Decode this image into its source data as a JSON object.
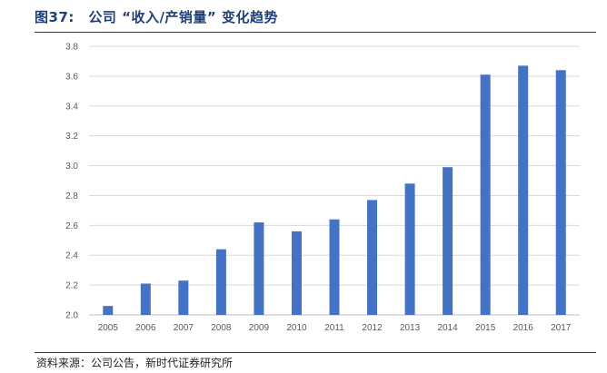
{
  "figure": {
    "title": "图37:　公司 “收入/产销量” 变化趋势",
    "source": "资料来源：公司公告，新时代证券研究所"
  },
  "colors": {
    "bar": "#4472c4",
    "grid": "#d9d9d9",
    "axis": "#bfbfbf",
    "title": "#1f3f78"
  },
  "chart_data": {
    "type": "bar",
    "title": "",
    "xlabel": "",
    "ylabel": "",
    "categories": [
      "2005",
      "2006",
      "2007",
      "2008",
      "2009",
      "2010",
      "2011",
      "2012",
      "2013",
      "2014",
      "2015",
      "2016",
      "2017"
    ],
    "series": [
      {
        "values": [
          2.06,
          2.21,
          2.23,
          2.44,
          2.62,
          2.56,
          2.64,
          2.77,
          2.88,
          2.99,
          3.61,
          3.67,
          3.64
        ]
      }
    ],
    "ylim": [
      2.0,
      3.8
    ],
    "yticks": [
      "2.0",
      "2.2",
      "2.4",
      "2.6",
      "2.8",
      "3.0",
      "3.2",
      "3.4",
      "3.6",
      "3.8"
    ],
    "grid": true,
    "legend": "none"
  }
}
